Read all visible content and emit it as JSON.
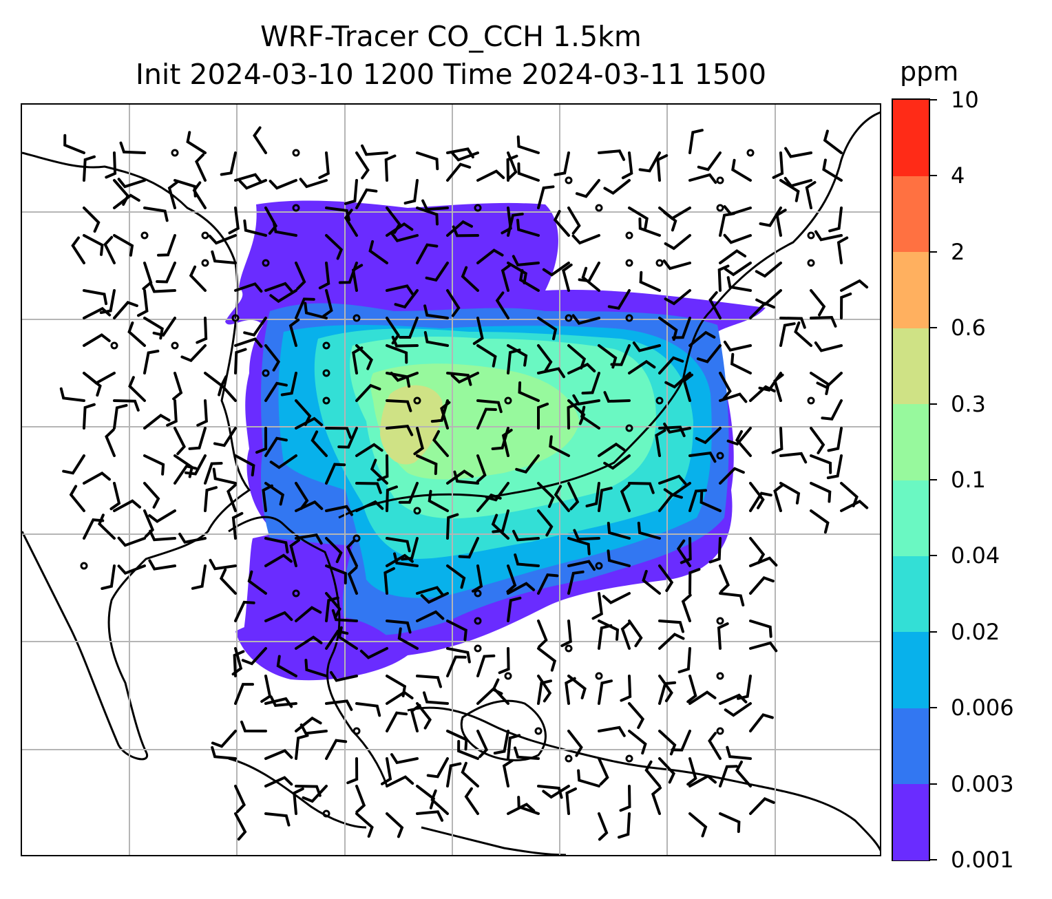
{
  "title": {
    "line1": "WRF-Tracer CO_CCH 1.5km",
    "line2": "Init 2024-03-10 1200 Time 2024-03-11 1500"
  },
  "colorbar": {
    "unit": "ppm",
    "levels": [
      "0.001",
      "0.003",
      "0.006",
      "0.02",
      "0.04",
      "0.1",
      "0.3",
      "0.6",
      "2",
      "4",
      "10"
    ],
    "colors": [
      "#6a2cff",
      "#3277f2",
      "#08b1eb",
      "#33dfd6",
      "#6af8c2",
      "#97f99d",
      "#cfe285",
      "#ffb05f",
      "#ff7141",
      "#ff2b17"
    ]
  },
  "map": {
    "plume_colors": {
      "outer": "#6a2cff",
      "mid": "#3277f2",
      "cyan": "#08b1eb",
      "teal": "#33dfd6",
      "mint": "#6af8c2",
      "green": "#97f99d",
      "olive": "#cfe285"
    }
  }
}
